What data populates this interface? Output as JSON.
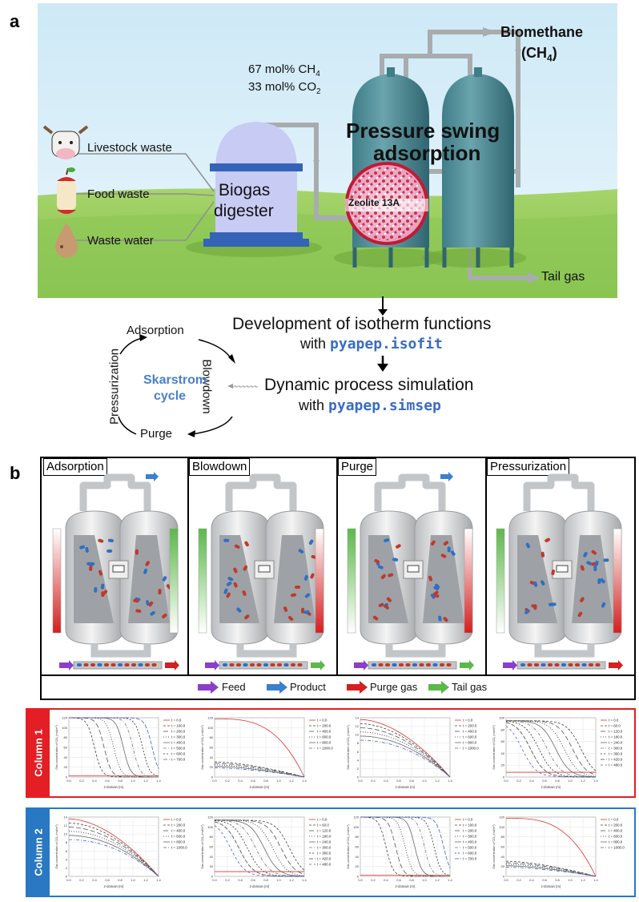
{
  "panel_a": {
    "letter": "a",
    "biomethane_line1": "Biomethane",
    "biomethane_line2": "(CH",
    "biomethane_sub": "4",
    "biomethane_close": ")",
    "ch4_value": "67 mol% CH",
    "ch4_sub": "4",
    "co2_value": "33 mol% CO",
    "co2_sub": "2",
    "psa_line1": "Pressure swing",
    "psa_line2": "adsorption",
    "zeolite": "Zeolite 13A",
    "digester_line1": "Biogas",
    "digester_line2": "digester",
    "sources": [
      "Livestock waste",
      "Food waste",
      "Waste water"
    ],
    "tail_gas": "Tail gas",
    "isotherm_line1": "Development of isotherm functions",
    "isotherm_with": "with ",
    "isotherm_code": "pyapep.isofit",
    "simulation_line1": "Dynamic process simulation",
    "simulation_with": "with ",
    "simulation_code": "pyapep.simsep",
    "cycle_title_1": "Skarstrom",
    "cycle_title_2": "cycle",
    "cycle_steps": {
      "top": "Adsorption",
      "right": "Blowdown",
      "bottom": "Purge",
      "left": "Pressurization"
    }
  },
  "panel_b": {
    "letter": "b",
    "steps": [
      "Adsorption",
      "Blowdown",
      "Purge",
      "Pressurization"
    ],
    "legend": [
      "Feed",
      "Product",
      "Purge gas",
      "Tail gas"
    ],
    "legend_colors": [
      "#8a3fc9",
      "#3a7fd0",
      "#d42020",
      "#5cb84a"
    ]
  },
  "columns": [
    {
      "label": "Column 1",
      "color": "#e31e24"
    },
    {
      "label": "Column 2",
      "color": "#2878c3"
    }
  ],
  "plot_axis": {
    "xlabel": "z-domain (m)",
    "ylabel": "Gas concentration of CO₂ (mol/m³)",
    "xticks": [
      "0.0",
      "0.2",
      "0.4",
      "0.6",
      "0.8",
      "1.0",
      "1.2",
      "1.4"
    ]
  },
  "chart_data": [
    {
      "type": "line",
      "column": 1,
      "step": "Adsorption",
      "ylim": [
        0,
        120
      ],
      "yticks": [
        "0",
        "20",
        "40",
        "60",
        "80",
        "100",
        "120"
      ],
      "series": [
        {
          "name": "t = 0.0"
        },
        {
          "name": "t = 100.0"
        },
        {
          "name": "t = 200.0"
        },
        {
          "name": "t = 300.0"
        },
        {
          "name": "t = 400.0"
        },
        {
          "name": "t = 500.0"
        },
        {
          "name": "t = 600.0"
        },
        {
          "name": "t = 700.0"
        }
      ]
    },
    {
      "type": "line",
      "column": 1,
      "step": "Blowdown",
      "ylim": [
        0,
        120
      ],
      "yticks": [
        "0",
        "20",
        "40",
        "60",
        "80",
        "100",
        "120"
      ],
      "series": [
        {
          "name": "t = 0.0"
        },
        {
          "name": "t = 200.0"
        },
        {
          "name": "t = 400.0"
        },
        {
          "name": "t = 600.0"
        },
        {
          "name": "t = 800.0"
        },
        {
          "name": "t = 1000.0"
        }
      ]
    },
    {
      "type": "line",
      "column": 1,
      "step": "Purge",
      "ylim": [
        0,
        14
      ],
      "yticks": [
        "0",
        "2",
        "4",
        "6",
        "8",
        "10",
        "12",
        "14"
      ],
      "series": [
        {
          "name": "t = 0.0"
        },
        {
          "name": "t = 200.0"
        },
        {
          "name": "t = 400.0"
        },
        {
          "name": "t = 600.0"
        },
        {
          "name": "t = 800.0"
        },
        {
          "name": "t = 1000.0"
        }
      ]
    },
    {
      "type": "line",
      "column": 1,
      "step": "Pressurization",
      "ylim": [
        0,
        100
      ],
      "yticks": [
        "0",
        "20",
        "40",
        "60",
        "80",
        "100"
      ],
      "series": [
        {
          "name": "t = 0.0"
        },
        {
          "name": "t = 60.0"
        },
        {
          "name": "t = 120.0"
        },
        {
          "name": "t = 180.0"
        },
        {
          "name": "t = 240.0"
        },
        {
          "name": "t = 300.0"
        },
        {
          "name": "t = 360.0"
        },
        {
          "name": "t = 420.0"
        },
        {
          "name": "t = 480.0"
        }
      ]
    },
    {
      "type": "line",
      "column": 2,
      "step": "Adsorption",
      "ylim": [
        0,
        14
      ],
      "yticks": [
        "0",
        "2",
        "4",
        "6",
        "8",
        "10",
        "12",
        "14"
      ],
      "series": [
        {
          "name": "t = 0.0"
        },
        {
          "name": "t = 200.0"
        },
        {
          "name": "t = 400.0"
        },
        {
          "name": "t = 600.0"
        },
        {
          "name": "t = 800.0"
        },
        {
          "name": "t = 1000.0"
        }
      ]
    },
    {
      "type": "line",
      "column": 2,
      "step": "Blowdown",
      "ylim": [
        0,
        120
      ],
      "yticks": [
        "0",
        "20",
        "40",
        "60",
        "80",
        "100",
        "120"
      ],
      "series": [
        {
          "name": "t = 0.0"
        },
        {
          "name": "t = 60.0"
        },
        {
          "name": "t = 120.0"
        },
        {
          "name": "t = 180.0"
        },
        {
          "name": "t = 240.0"
        },
        {
          "name": "t = 300.0"
        },
        {
          "name": "t = 360.0"
        },
        {
          "name": "t = 420.0"
        },
        {
          "name": "t = 480.0"
        }
      ]
    },
    {
      "type": "line",
      "column": 2,
      "step": "Purge",
      "ylim": [
        0,
        120
      ],
      "yticks": [
        "0",
        "20",
        "40",
        "60",
        "80",
        "100",
        "120"
      ],
      "series": [
        {
          "name": "t = 0.0"
        },
        {
          "name": "t = 100.0"
        },
        {
          "name": "t = 200.0"
        },
        {
          "name": "t = 300.0"
        },
        {
          "name": "t = 400.0"
        },
        {
          "name": "t = 500.0"
        },
        {
          "name": "t = 600.0"
        },
        {
          "name": "t = 700.0"
        }
      ]
    },
    {
      "type": "line",
      "column": 2,
      "step": "Pressurization",
      "ylim": [
        0,
        120
      ],
      "yticks": [
        "0",
        "20",
        "40",
        "60",
        "80",
        "100",
        "120"
      ],
      "series": [
        {
          "name": "t = 0.0"
        },
        {
          "name": "t = 200.0"
        },
        {
          "name": "t = 400.0"
        },
        {
          "name": "t = 600.0"
        },
        {
          "name": "t = 800.0"
        },
        {
          "name": "t = 1000.0"
        }
      ]
    }
  ]
}
